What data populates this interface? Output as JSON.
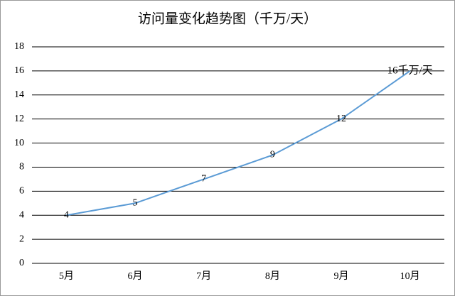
{
  "chart_data": {
    "type": "line",
    "title": "访问量变化趋势图（千万/天）",
    "categories": [
      "5月",
      "6月",
      "7月",
      "8月",
      "9月",
      "10月"
    ],
    "values": [
      4,
      5,
      7,
      9,
      12,
      16
    ],
    "value_labels": [
      "4",
      "5",
      "7",
      "9",
      "12",
      "16千万/天"
    ],
    "color": "#5b9bd5",
    "ylim": [
      0,
      18
    ],
    "yticks": [
      0,
      2,
      4,
      6,
      8,
      10,
      12,
      14,
      16,
      18
    ],
    "grid": true
  }
}
